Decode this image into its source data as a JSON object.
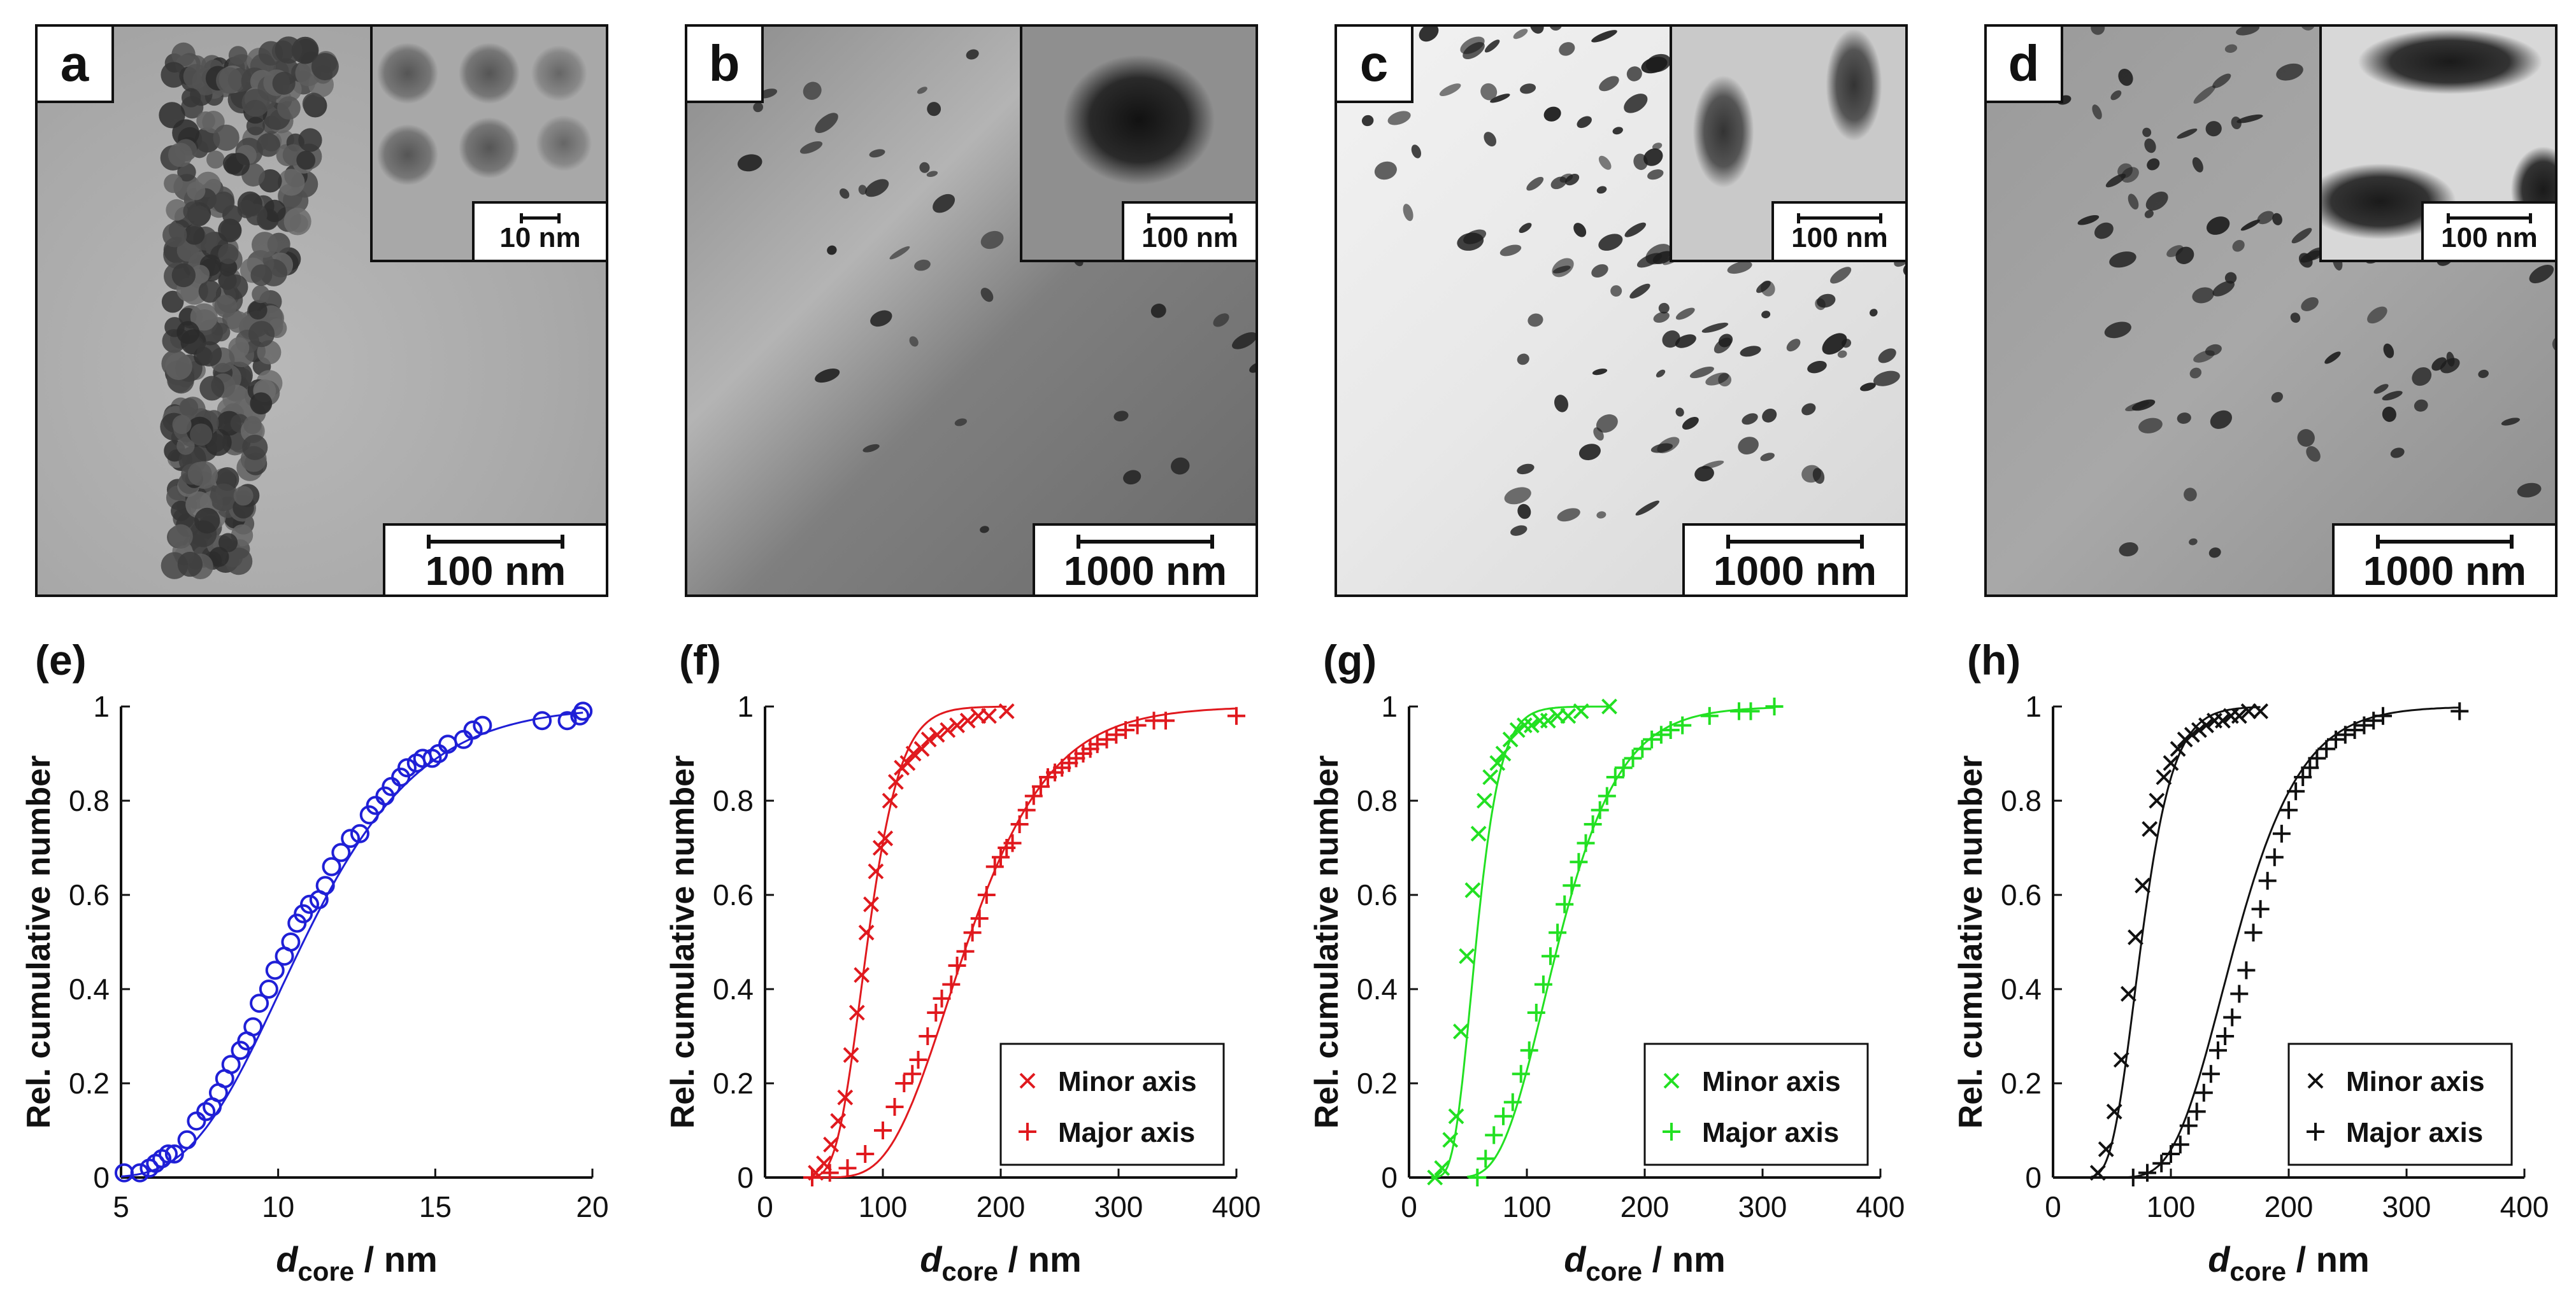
{
  "micrographs": [
    {
      "id": "a",
      "label": "a",
      "scale": "100 nm",
      "inset_scale": "10 nm",
      "tone": "tem"
    },
    {
      "id": "b",
      "label": "b",
      "scale": "1000 nm",
      "inset_scale": "100 nm",
      "tone": "dark"
    },
    {
      "id": "c",
      "label": "c",
      "scale": "1000 nm",
      "inset_scale": "100 nm",
      "tone": "light"
    },
    {
      "id": "d",
      "label": "d",
      "scale": "1000 nm",
      "inset_scale": "100 nm",
      "tone": "mid"
    }
  ],
  "chart_data": [
    {
      "panel": "(e)",
      "type": "scatter",
      "color": "#1f1fd6",
      "marker": "circle",
      "xlabel": "d",
      "xlabel_sub": "core",
      "xlabel_unit": " / nm",
      "ylabel": "Rel. cumulative number",
      "xlim": [
        5,
        20
      ],
      "ylim": [
        0,
        1
      ],
      "xticks": [
        5,
        10,
        15,
        20
      ],
      "yticks": [
        0,
        0.2,
        0.4,
        0.6,
        0.8,
        1
      ],
      "series": [
        {
          "name": "core",
          "fit": {
            "median": 10.8,
            "sigma": 0.27
          },
          "x": [
            5.1,
            5.6,
            5.9,
            6.1,
            6.3,
            6.5,
            6.7,
            7.1,
            7.4,
            7.7,
            7.9,
            8.1,
            8.3,
            8.5,
            8.8,
            9.0,
            9.2,
            9.4,
            9.7,
            9.9,
            10.2,
            10.4,
            10.6,
            10.8,
            11.0,
            11.3,
            11.5,
            11.7,
            12.0,
            12.3,
            12.6,
            12.9,
            13.1,
            13.4,
            13.6,
            13.9,
            14.1,
            14.4,
            14.6,
            14.9,
            15.1,
            15.4,
            15.9,
            16.2,
            16.5,
            18.4,
            19.2,
            19.6,
            19.7
          ],
          "y": [
            0.01,
            0.01,
            0.02,
            0.03,
            0.04,
            0.05,
            0.05,
            0.08,
            0.12,
            0.14,
            0.15,
            0.18,
            0.21,
            0.24,
            0.27,
            0.29,
            0.32,
            0.37,
            0.4,
            0.44,
            0.47,
            0.5,
            0.54,
            0.56,
            0.58,
            0.59,
            0.62,
            0.66,
            0.69,
            0.72,
            0.73,
            0.77,
            0.79,
            0.81,
            0.83,
            0.85,
            0.87,
            0.88,
            0.89,
            0.89,
            0.9,
            0.92,
            0.93,
            0.95,
            0.96,
            0.97,
            0.97,
            0.98,
            0.99
          ]
        }
      ]
    },
    {
      "panel": "(f)",
      "type": "scatter",
      "color": "#e0191e",
      "xlabel": "d",
      "xlabel_sub": "core",
      "xlabel_unit": " / nm",
      "ylabel": "Rel. cumulative number",
      "xlim": [
        0,
        400
      ],
      "ylim": [
        0,
        1
      ],
      "xticks": [
        0,
        100,
        200,
        300,
        400
      ],
      "yticks": [
        0,
        0.2,
        0.4,
        0.6,
        0.8,
        1
      ],
      "legend": "bottom-right",
      "series": [
        {
          "name": "Minor axis",
          "marker": "x",
          "fit": {
            "median": 87,
            "sigma": 0.25
          },
          "x": [
            43,
            50,
            56,
            62,
            68,
            73,
            78,
            82,
            86,
            90,
            94,
            98,
            102,
            106,
            111,
            116,
            121,
            126,
            133,
            139,
            146,
            155,
            163,
            172,
            181,
            190,
            205
          ],
          "y": [
            0.01,
            0.03,
            0.07,
            0.12,
            0.17,
            0.26,
            0.35,
            0.43,
            0.52,
            0.58,
            0.65,
            0.7,
            0.72,
            0.8,
            0.84,
            0.87,
            0.88,
            0.9,
            0.91,
            0.93,
            0.94,
            0.95,
            0.96,
            0.97,
            0.98,
            0.98,
            0.99
          ]
        },
        {
          "name": "Major axis",
          "marker": "+",
          "fit": {
            "median": 172,
            "sigma": 0.32
          },
          "x": [
            40,
            55,
            70,
            85,
            100,
            110,
            118,
            125,
            130,
            138,
            145,
            150,
            158,
            163,
            170,
            176,
            182,
            188,
            195,
            200,
            205,
            210,
            216,
            222,
            228,
            234,
            240,
            246,
            252,
            258,
            264,
            270,
            276,
            282,
            290,
            298,
            306,
            316,
            330,
            340,
            400
          ],
          "y": [
            0.0,
            0.01,
            0.02,
            0.05,
            0.1,
            0.15,
            0.2,
            0.22,
            0.25,
            0.3,
            0.35,
            0.38,
            0.41,
            0.45,
            0.48,
            0.52,
            0.55,
            0.6,
            0.66,
            0.68,
            0.7,
            0.71,
            0.75,
            0.78,
            0.81,
            0.83,
            0.85,
            0.86,
            0.87,
            0.88,
            0.89,
            0.9,
            0.91,
            0.92,
            0.93,
            0.94,
            0.95,
            0.96,
            0.97,
            0.97,
            0.98
          ]
        }
      ]
    },
    {
      "panel": "(g)",
      "type": "scatter",
      "color": "#22e022",
      "xlabel": "d",
      "xlabel_sub": "core",
      "xlabel_unit": " / nm",
      "ylabel": "Rel. cumulative number",
      "xlim": [
        0,
        400
      ],
      "ylim": [
        0,
        1
      ],
      "xticks": [
        0,
        100,
        200,
        300,
        400
      ],
      "yticks": [
        0,
        0.2,
        0.4,
        0.6,
        0.8,
        1
      ],
      "legend": "bottom-right",
      "series": [
        {
          "name": "Minor axis",
          "marker": "x",
          "fit": {
            "median": 57,
            "sigma": 0.28
          },
          "x": [
            22,
            28,
            35,
            40,
            44,
            49,
            54,
            59,
            64,
            69,
            75,
            80,
            86,
            92,
            98,
            104,
            111,
            118,
            126,
            135,
            146,
            170
          ],
          "y": [
            0.0,
            0.02,
            0.08,
            0.13,
            0.31,
            0.47,
            0.61,
            0.73,
            0.8,
            0.85,
            0.88,
            0.9,
            0.93,
            0.95,
            0.96,
            0.96,
            0.97,
            0.97,
            0.98,
            0.98,
            0.99,
            1.0
          ]
        },
        {
          "name": "Major axis",
          "marker": "+",
          "fit": {
            "median": 127,
            "sigma": 0.32
          },
          "x": [
            58,
            65,
            72,
            80,
            88,
            95,
            102,
            108,
            114,
            120,
            126,
            132,
            138,
            144,
            150,
            156,
            162,
            168,
            175,
            182,
            190,
            198,
            206,
            214,
            222,
            232,
            255,
            280,
            290,
            310
          ],
          "y": [
            0.0,
            0.04,
            0.09,
            0.13,
            0.16,
            0.22,
            0.27,
            0.35,
            0.41,
            0.47,
            0.52,
            0.58,
            0.62,
            0.67,
            0.71,
            0.75,
            0.78,
            0.81,
            0.85,
            0.87,
            0.89,
            0.91,
            0.93,
            0.94,
            0.95,
            0.96,
            0.98,
            0.99,
            0.99,
            1.0
          ]
        }
      ]
    },
    {
      "panel": "(h)",
      "type": "scatter",
      "color": "#111111",
      "xlabel": "d",
      "xlabel_sub": "core",
      "xlabel_unit": " / nm",
      "ylabel": "Rel. cumulative number",
      "xlim": [
        0,
        400
      ],
      "ylim": [
        0,
        1
      ],
      "xticks": [
        0,
        100,
        200,
        300,
        400
      ],
      "yticks": [
        0,
        0.2,
        0.4,
        0.6,
        0.8,
        1
      ],
      "legend": "bottom-right",
      "series": [
        {
          "name": "Minor axis",
          "marker": "x",
          "fit": {
            "median": 75,
            "sigma": 0.28
          },
          "x": [
            38,
            45,
            52,
            58,
            64,
            70,
            76,
            82,
            88,
            94,
            100,
            106,
            112,
            118,
            124,
            130,
            137,
            144,
            151,
            158,
            166,
            176
          ],
          "y": [
            0.01,
            0.06,
            0.14,
            0.25,
            0.39,
            0.51,
            0.62,
            0.74,
            0.8,
            0.85,
            0.88,
            0.91,
            0.93,
            0.94,
            0.95,
            0.96,
            0.97,
            0.97,
            0.98,
            0.98,
            0.99,
            0.99
          ]
        },
        {
          "name": "Major axis",
          "marker": "+",
          "fit": {
            "median": 155,
            "sigma": 0.28
          },
          "x": [
            68,
            80,
            92,
            100,
            108,
            115,
            122,
            128,
            134,
            140,
            146,
            152,
            158,
            164,
            170,
            176,
            182,
            188,
            194,
            200,
            206,
            212,
            218,
            224,
            232,
            240,
            248,
            256,
            264,
            272,
            280,
            345
          ],
          "y": [
            0.0,
            0.01,
            0.03,
            0.05,
            0.07,
            0.11,
            0.14,
            0.18,
            0.22,
            0.27,
            0.3,
            0.34,
            0.39,
            0.44,
            0.52,
            0.57,
            0.63,
            0.68,
            0.73,
            0.78,
            0.82,
            0.85,
            0.87,
            0.89,
            0.91,
            0.93,
            0.94,
            0.95,
            0.96,
            0.97,
            0.98,
            0.99
          ]
        }
      ]
    }
  ]
}
